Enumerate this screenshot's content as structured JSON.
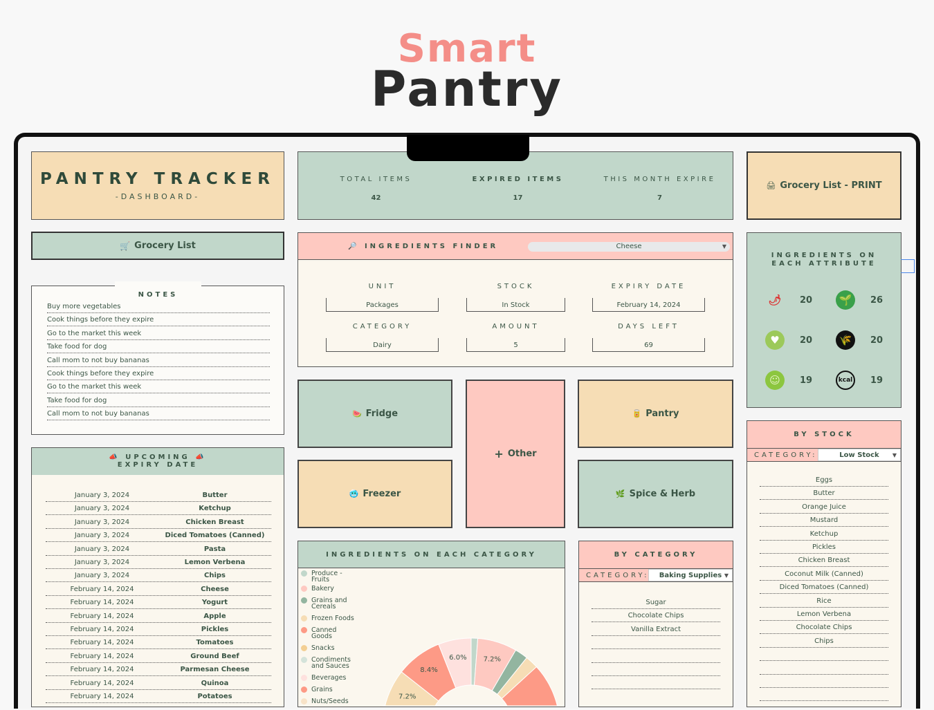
{
  "brand": {
    "line1": "Smart",
    "line2": "Pantry"
  },
  "tracker": {
    "title": "PANTRY TRACKER",
    "subtitle": "-DASHBOARD-"
  },
  "grocery_button": "Grocery List",
  "print_button": "Grocery List - PRINT",
  "notes": {
    "title": "NOTES",
    "items": [
      "Buy more vegetables",
      "Cook things before they expire",
      "Go to the market this week",
      "Take food for dog",
      "Call mom to not buy bananas",
      "Cook things before they expire",
      "Go to the market this week",
      "Take food for dog",
      "Call mom to not buy bananas"
    ]
  },
  "stats": [
    {
      "label": "TOTAL ITEMS",
      "value": "42"
    },
    {
      "label": "EXPIRED ITEMS",
      "value": "17"
    },
    {
      "label": "THIS MONTH EXPIRE",
      "value": "7"
    }
  ],
  "finder": {
    "title": "INGREDIENTS FINDER",
    "selected": "Cheese",
    "fields": [
      {
        "label": "UNIT",
        "value": "Packages"
      },
      {
        "label": "STOCK",
        "value": "In Stock"
      },
      {
        "label": "EXPIRY DATE",
        "value": "February 14, 2024"
      },
      {
        "label": "CATEGORY",
        "value": "Dairy"
      },
      {
        "label": "AMOUNT",
        "value": "5"
      },
      {
        "label": "DAYS LEFT",
        "value": "69"
      }
    ]
  },
  "locations": {
    "fridge": "Fridge",
    "freezer": "Freezer",
    "other": "Other",
    "pantry": "Pantry",
    "spice": "Spice & Herb"
  },
  "attributes": {
    "title": "INGREDIENTS ON EACH ATTRIBUTE",
    "items": [
      {
        "icon": "spicy-chili-icon",
        "count": "20"
      },
      {
        "icon": "vegetarian-icon",
        "count": "26"
      },
      {
        "icon": "vegan-icon",
        "count": "20"
      },
      {
        "icon": "gluten-free-icon",
        "count": "20"
      },
      {
        "icon": "dairy-free-icon",
        "count": "19"
      },
      {
        "icon": "low-kcal-icon",
        "count": "19"
      }
    ]
  },
  "upcoming": {
    "title1": "UPCOMING",
    "title2": "EXPIRY DATE",
    "rows": [
      [
        "January 3, 2024",
        "Butter"
      ],
      [
        "January 3, 2024",
        "Ketchup"
      ],
      [
        "January 3, 2024",
        "Chicken Breast"
      ],
      [
        "January 3, 2024",
        "Diced Tomatoes (Canned)"
      ],
      [
        "January 3, 2024",
        "Pasta"
      ],
      [
        "January 3, 2024",
        "Lemon Verbena"
      ],
      [
        "January 3, 2024",
        "Chips"
      ],
      [
        "February 14, 2024",
        "Cheese"
      ],
      [
        "February 14, 2024",
        "Yogurt"
      ],
      [
        "February 14, 2024",
        "Apple"
      ],
      [
        "February 14, 2024",
        "Pickles"
      ],
      [
        "February 14, 2024",
        "Tomatoes"
      ],
      [
        "February 14, 2024",
        "Ground Beef"
      ],
      [
        "February 14, 2024",
        "Parmesan Cheese"
      ],
      [
        "February 14, 2024",
        "Quinoa"
      ],
      [
        "February 14, 2024",
        "Potatoes"
      ]
    ]
  },
  "by_category": {
    "title": "BY CATEGORY",
    "label": "CATEGORY:",
    "selected": "Baking Supplies",
    "items": [
      "Sugar",
      "Chocolate Chips",
      "Vanilla Extract"
    ]
  },
  "by_stock": {
    "title": "BY STOCK",
    "label": "CATEGORY:",
    "selected": "Low Stock",
    "items": [
      "Eggs",
      "Butter",
      "Orange Juice",
      "Mustard",
      "Ketchup",
      "Pickles",
      "Chicken Breast",
      "Coconut Milk (Canned)",
      "Diced Tomatoes (Canned)",
      "Rice",
      "Lemon Verbena",
      "Chocolate Chips",
      "Chips"
    ]
  },
  "chart_data": {
    "type": "pie",
    "title": "INGREDIENTS ON EACH CATEGORY",
    "donut": true,
    "legend": "left",
    "slices": [
      {
        "name": "Produce - Fruits",
        "value": 1.2,
        "color": "#c1d7ca"
      },
      {
        "name": "Bakery",
        "value": 7.2,
        "color": "#fec9c1",
        "label": "7.2%"
      },
      {
        "name": "Grains and Cereals",
        "value": 2.4,
        "color": "#93b5a0"
      },
      {
        "name": "Frozen Foods",
        "value": 2.4,
        "color": "#f6ddb5"
      },
      {
        "name": "Canned Goods",
        "value": 13.0,
        "color": "#fd9a86"
      },
      {
        "name": "Snacks",
        "value": 9.0,
        "color": "#f3cf93"
      },
      {
        "name": "Condiments and Sauces",
        "value": 8.0,
        "color": "#d4e3da"
      },
      {
        "name": "Beverages",
        "value": 8.0,
        "color": "#fee1de"
      },
      {
        "name": "Grains",
        "value": 9.0,
        "color": "#fd9a86"
      },
      {
        "name": "Nuts/Seeds",
        "value": 8.0,
        "color": "#f8e3c8"
      },
      {
        "name": null,
        "value": 10.2,
        "color": "#c1d7ca"
      },
      {
        "name": null,
        "value": 7.2,
        "color": "#f6ddb5",
        "label": "7.2%"
      },
      {
        "name": null,
        "value": 8.4,
        "color": "#fd9a86",
        "label": "8.4%"
      },
      {
        "name": null,
        "value": 6.0,
        "color": "#fee1de",
        "label": "6.0%"
      }
    ]
  }
}
